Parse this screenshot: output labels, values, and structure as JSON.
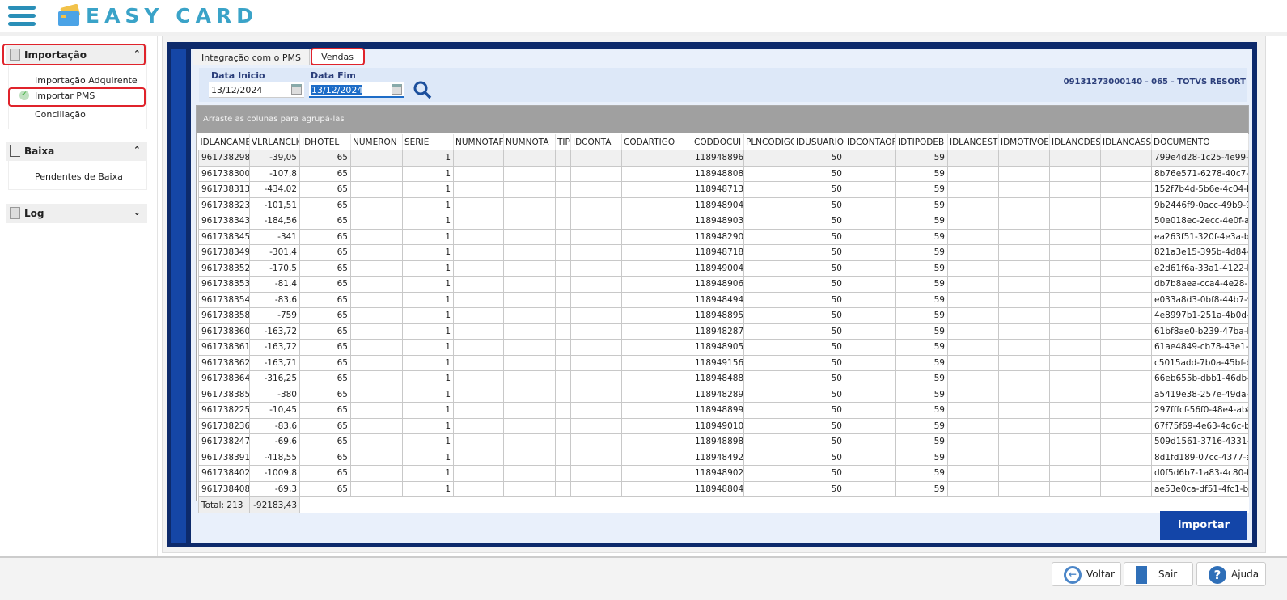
{
  "app": {
    "title": "EASY CARD"
  },
  "sidebar": {
    "sections": [
      {
        "label": "Importação",
        "items": [
          "Importação Adquirente",
          "Importar PMS",
          "Conciliação"
        ]
      },
      {
        "label": "Baixa",
        "items": [
          "Pendentes de Baixa"
        ]
      },
      {
        "label": "Log",
        "items": []
      }
    ],
    "active_item": "Importar PMS"
  },
  "tabs": [
    "Integração com o PMS",
    "Vendas"
  ],
  "active_tab": "Vendas",
  "filter": {
    "start_label": "Data Inicio",
    "start_value": "13/12/2024",
    "end_label": "Data Fim",
    "end_value": "13/12/2024",
    "company": "09131273000140 - 065 - TOTVS RESORT"
  },
  "grid": {
    "group_hint": "Arraste as colunas para agrupá-las",
    "columns": [
      "IDLANCAME",
      "VLRLANCLIC",
      "IDHOTEL",
      "NUMERON",
      "SERIE",
      "NUMNOTAF",
      "NUMNOTA",
      "TIP",
      "IDCONTA",
      "CODARTIGO",
      "CODDOCUI",
      "PLNCODIGC",
      "IDUSUARIO",
      "IDCONTAOF",
      "IDTIPODEB",
      "IDLANCEST",
      "IDMOTIVOE",
      "IDLANCDES",
      "IDLANCASS",
      "DOCUMENTO"
    ],
    "rows": [
      [
        "961738298",
        "-39,05",
        "65",
        "",
        "1",
        "",
        "",
        "",
        "",
        "",
        "118948896",
        "",
        "50",
        "",
        "59",
        "",
        "",
        "",
        "",
        "799e4d28-1c25-4e99-84"
      ],
      [
        "961738300",
        "-107,8",
        "65",
        "",
        "1",
        "",
        "",
        "",
        "",
        "",
        "118948808",
        "",
        "50",
        "",
        "59",
        "",
        "",
        "",
        "",
        "8b76e571-6278-40c7-b6"
      ],
      [
        "961738313",
        "-434,02",
        "65",
        "",
        "1",
        "",
        "",
        "",
        "",
        "",
        "118948713",
        "",
        "50",
        "",
        "59",
        "",
        "",
        "",
        "",
        "152f7b4d-5b6e-4c04-b5"
      ],
      [
        "961738323",
        "-101,51",
        "65",
        "",
        "1",
        "",
        "",
        "",
        "",
        "",
        "118948904",
        "",
        "50",
        "",
        "59",
        "",
        "",
        "",
        "",
        "9b2446f9-0acc-49b9-96"
      ],
      [
        "961738343",
        "-184,56",
        "65",
        "",
        "1",
        "",
        "",
        "",
        "",
        "",
        "118948903",
        "",
        "50",
        "",
        "59",
        "",
        "",
        "",
        "",
        "50e018ec-2ecc-4e0f-a8"
      ],
      [
        "961738345",
        "-341",
        "65",
        "",
        "1",
        "",
        "",
        "",
        "",
        "",
        "118948290",
        "",
        "50",
        "",
        "59",
        "",
        "",
        "",
        "",
        "ea263f51-320f-4e3a-b9"
      ],
      [
        "961738349",
        "-301,4",
        "65",
        "",
        "1",
        "",
        "",
        "",
        "",
        "",
        "118948718",
        "",
        "50",
        "",
        "59",
        "",
        "",
        "",
        "",
        "821a3e15-395b-4d84-bf"
      ],
      [
        "961738352",
        "-170,5",
        "65",
        "",
        "1",
        "",
        "",
        "",
        "",
        "",
        "118949004",
        "",
        "50",
        "",
        "59",
        "",
        "",
        "",
        "",
        "e2d61f6a-33a1-4122-b9"
      ],
      [
        "961738353",
        "-81,4",
        "65",
        "",
        "1",
        "",
        "",
        "",
        "",
        "",
        "118948906",
        "",
        "50",
        "",
        "59",
        "",
        "",
        "",
        "",
        "db7b8aea-cca4-4e28-ab"
      ],
      [
        "961738354",
        "-83,6",
        "65",
        "",
        "1",
        "",
        "",
        "",
        "",
        "",
        "118948494",
        "",
        "50",
        "",
        "59",
        "",
        "",
        "",
        "",
        "e033a8d3-0bf8-44b7-92"
      ],
      [
        "961738358",
        "-759",
        "65",
        "",
        "1",
        "",
        "",
        "",
        "",
        "",
        "118948895",
        "",
        "50",
        "",
        "59",
        "",
        "",
        "",
        "",
        "4e8997b1-251a-4b0d-9c"
      ],
      [
        "961738360",
        "-163,72",
        "65",
        "",
        "1",
        "",
        "",
        "",
        "",
        "",
        "118948287",
        "",
        "50",
        "",
        "59",
        "",
        "",
        "",
        "",
        "61bf8ae0-b239-47ba-b7"
      ],
      [
        "961738361",
        "-163,72",
        "65",
        "",
        "1",
        "",
        "",
        "",
        "",
        "",
        "118948905",
        "",
        "50",
        "",
        "59",
        "",
        "",
        "",
        "",
        "61ae4849-cb78-43e1-b5"
      ],
      [
        "961738362",
        "-163,71",
        "65",
        "",
        "1",
        "",
        "",
        "",
        "",
        "",
        "118949156",
        "",
        "50",
        "",
        "59",
        "",
        "",
        "",
        "",
        "c5015add-7b0a-45bf-bc"
      ],
      [
        "961738364",
        "-316,25",
        "65",
        "",
        "1",
        "",
        "",
        "",
        "",
        "",
        "118948488",
        "",
        "50",
        "",
        "59",
        "",
        "",
        "",
        "",
        "66eb655b-dbb1-46db-8"
      ],
      [
        "961738385",
        "-380",
        "65",
        "",
        "1",
        "",
        "",
        "",
        "",
        "",
        "118948289",
        "",
        "50",
        "",
        "59",
        "",
        "",
        "",
        "",
        "a5419e38-257e-49da-85"
      ],
      [
        "961738225",
        "-10,45",
        "65",
        "",
        "1",
        "",
        "",
        "",
        "",
        "",
        "118948899",
        "",
        "50",
        "",
        "59",
        "",
        "",
        "",
        "",
        "297fffcf-56f0-48e4-ab8a"
      ],
      [
        "961738236",
        "-83,6",
        "65",
        "",
        "1",
        "",
        "",
        "",
        "",
        "",
        "118949010",
        "",
        "50",
        "",
        "59",
        "",
        "",
        "",
        "",
        "67f75f69-4e63-4d6c-bc7"
      ],
      [
        "961738247",
        "-69,6",
        "65",
        "",
        "1",
        "",
        "",
        "",
        "",
        "",
        "118948898",
        "",
        "50",
        "",
        "59",
        "",
        "",
        "",
        "",
        "509d1561-3716-4331-a3"
      ],
      [
        "961738391",
        "-418,55",
        "65",
        "",
        "1",
        "",
        "",
        "",
        "",
        "",
        "118948492",
        "",
        "50",
        "",
        "59",
        "",
        "",
        "",
        "",
        "8d1fd189-07cc-4377-a8"
      ],
      [
        "961738402",
        "-1009,8",
        "65",
        "",
        "1",
        "",
        "",
        "",
        "",
        "",
        "118948902",
        "",
        "50",
        "",
        "59",
        "",
        "",
        "",
        "",
        "d0f5d6b7-1a83-4c80-bb"
      ],
      [
        "961738408",
        "-69,3",
        "65",
        "",
        "1",
        "",
        "",
        "",
        "",
        "",
        "118948804",
        "",
        "50",
        "",
        "59",
        "",
        "",
        "",
        "",
        "ae53e0ca-df51-4fc1-bf8"
      ]
    ],
    "total_label": "Total: 213",
    "total_value": "-92183,43"
  },
  "actions": {
    "import": "importar",
    "back": "Voltar",
    "exit": "Sair",
    "help": "Ajuda"
  },
  "colors": {
    "accent": "#1345a8",
    "frame": "#0d2a6b",
    "highlight": "#e0232b",
    "logo": "#3aa3c8"
  }
}
